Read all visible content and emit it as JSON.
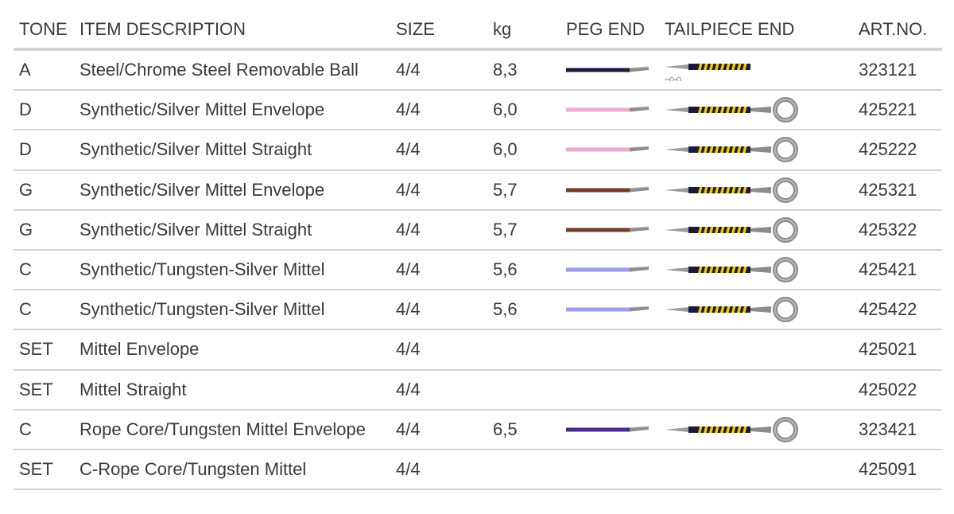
{
  "headers": {
    "tone": "TONE",
    "description": "ITEM DESCRIPTION",
    "size": "SIZE",
    "kg": "kg",
    "peg_end": "PEG END",
    "tailpiece_end": "TAILPIECE END",
    "art_no": "ART.NO."
  },
  "rows": [
    {
      "tone": "A",
      "description": "Steel/Chrome Steel Removable Ball",
      "size": "4/4",
      "kg": "8,3",
      "peg_color": "#1a1a3a",
      "tail": "ball",
      "art": "323121"
    },
    {
      "tone": "D",
      "description": "Synthetic/Silver Mittel Envelope",
      "size": "4/4",
      "kg": "6,0",
      "peg_color": "#f2a8d6",
      "tail": "loop",
      "art": "425221"
    },
    {
      "tone": "D",
      "description": "Synthetic/Silver Mittel Straight",
      "size": "4/4",
      "kg": "6,0",
      "peg_color": "#f2a8d6",
      "tail": "loop",
      "art": "425222"
    },
    {
      "tone": "G",
      "description": "Synthetic/Silver Mittel Envelope",
      "size": "4/4",
      "kg": "5,7",
      "peg_color": "#7a3a26",
      "tail": "loop",
      "art": "425321"
    },
    {
      "tone": "G",
      "description": "Synthetic/Silver Mittel Straight",
      "size": "4/4",
      "kg": "5,7",
      "peg_color": "#7a3a26",
      "tail": "loop",
      "art": "425322"
    },
    {
      "tone": "C",
      "description": "Synthetic/Tungsten-Silver Mittel",
      "size": "4/4",
      "kg": "5,6",
      "peg_color": "#9a9cf0",
      "tail": "loop",
      "art": "425421"
    },
    {
      "tone": "C",
      "description": "Synthetic/Tungsten-Silver Mittel",
      "size": "4/4",
      "kg": "5,6",
      "peg_color": "#9a9cf0",
      "tail": "loop",
      "art": "425422"
    },
    {
      "tone": "SET",
      "description": "Mittel Envelope",
      "size": "4/4",
      "kg": "",
      "peg_color": "",
      "tail": "",
      "art": "425021"
    },
    {
      "tone": "SET",
      "description": "Mittel Straight",
      "size": "4/4",
      "kg": "",
      "peg_color": "",
      "tail": "",
      "art": "425022"
    },
    {
      "tone": "C",
      "description": "Rope Core/Tungsten Mittel Envelope",
      "size": "4/4",
      "kg": "6,5",
      "peg_color": "#4a2a8a",
      "tail": "loop",
      "art": "323421"
    },
    {
      "tone": "SET",
      "description": "C-Rope Core/Tungsten Mittel",
      "size": "4/4",
      "kg": "",
      "peg_color": "",
      "tail": "",
      "art": "425091"
    }
  ]
}
